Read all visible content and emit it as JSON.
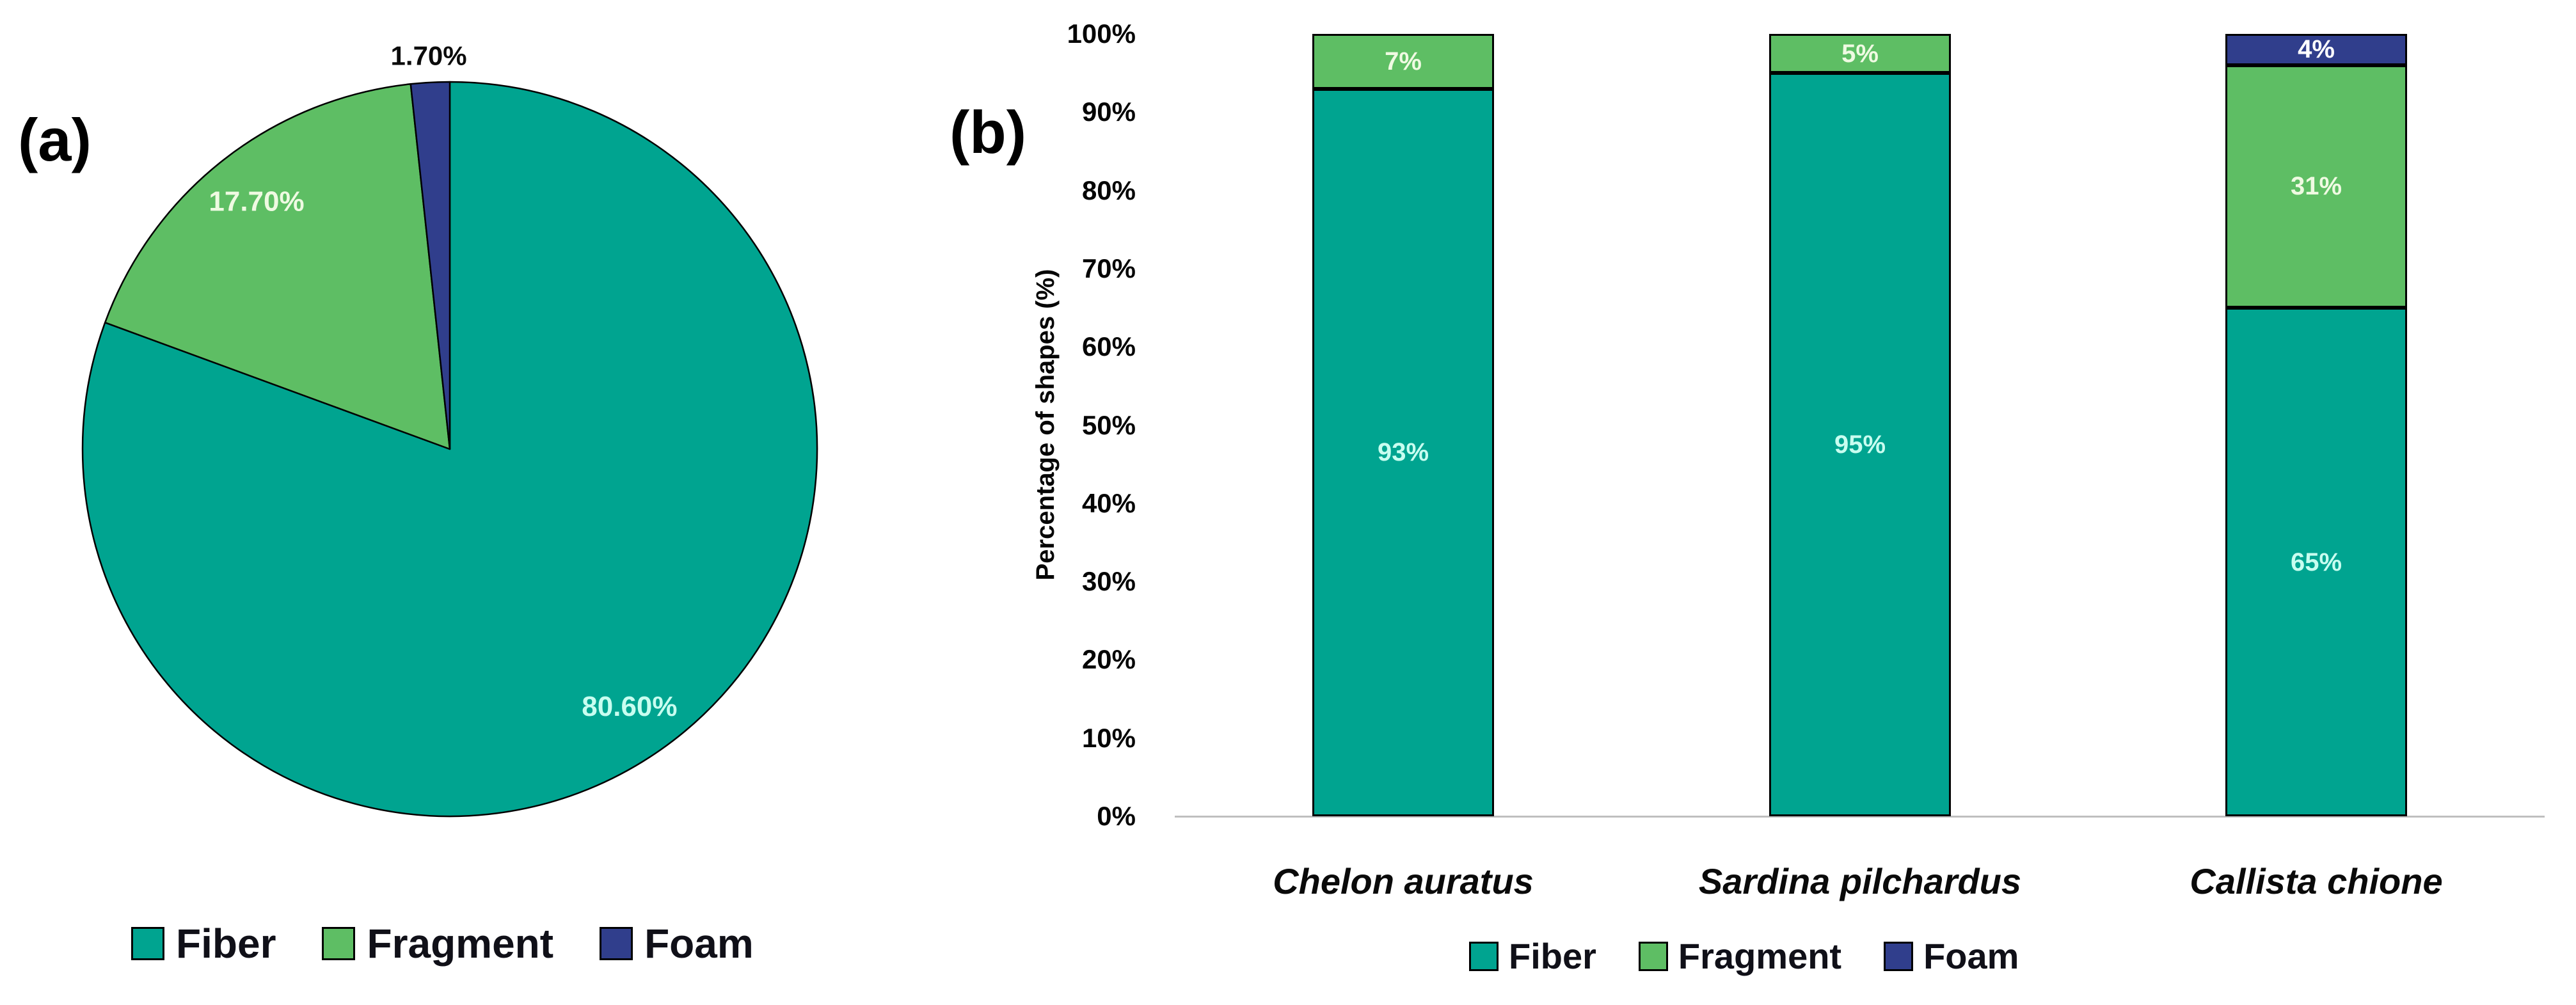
{
  "panels": {
    "a_label": "(a)",
    "b_label": "(b)"
  },
  "colors": {
    "fiber": "#00A490",
    "fragment": "#5EBE64",
    "foam": "#303E8C",
    "slice_border": "#000000",
    "baseline": "#BFBFBF",
    "label_on_fiber": "#C8FEF0",
    "label_on_fragment": "#EFFAE2",
    "label_on_foam": "#FFFFFF",
    "outside_label": "#0B0B0B",
    "legend_text": "#101018",
    "axis_text": "#050505"
  },
  "chart_data": [
    {
      "type": "pie",
      "panel": "a",
      "categories": [
        "Fiber",
        "Fragment",
        "Foam"
      ],
      "values": [
        80.6,
        17.7,
        1.7
      ],
      "slice_labels": [
        "80.60%",
        "17.70%",
        "1.70%"
      ],
      "label_placement": [
        "inside",
        "inside",
        "outside"
      ],
      "start_angle": "12-oclock",
      "direction": "clockwise",
      "legend": [
        "Fiber",
        "Fragment",
        "Foam"
      ],
      "legend_position": "bottom"
    },
    {
      "type": "bar",
      "stacked": true,
      "panel": "b",
      "categories": [
        "Chelon auratus",
        "Sardina pilchardus",
        "Callista chione"
      ],
      "series": [
        {
          "name": "Fiber",
          "values": [
            93,
            95,
            65
          ],
          "labels": [
            "93%",
            "95%",
            "65%"
          ]
        },
        {
          "name": "Fragment",
          "values": [
            7,
            5,
            31
          ],
          "labels": [
            "7%",
            "5%",
            "31%"
          ]
        },
        {
          "name": "Foam",
          "values": [
            0,
            0,
            4
          ],
          "labels": [
            "",
            "",
            "4%"
          ]
        }
      ],
      "xlabel": "",
      "ylabel": "Percentage of shapes (%)",
      "yticks": [
        "0%",
        "10%",
        "20%",
        "30%",
        "40%",
        "50%",
        "60%",
        "70%",
        "80%",
        "90%",
        "100%"
      ],
      "ylim": [
        0,
        100
      ],
      "grid": false,
      "legend": [
        "Fiber",
        "Fragment",
        "Foam"
      ],
      "legend_position": "bottom"
    }
  ]
}
